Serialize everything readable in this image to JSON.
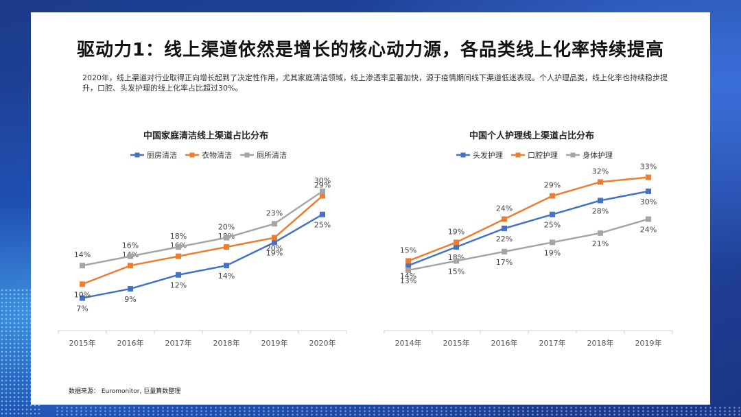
{
  "page": {
    "title": "驱动力1：线上渠道依然是增长的核心动力源，各品类线上化率持续提高",
    "description": "2020年，线上渠道对行业取得正向增长起到了决定性作用，尤其家庭清洁领域，线上渗透率显著加快，源于疫情期间线下渠道低迷表现。个人护理品类，线上化率也持续稳步提升，口腔、头发护理的线上化率占比超过30%。",
    "source": "数据来源： Euromonitor, 巨量算数整理"
  },
  "chart_data": [
    {
      "type": "line",
      "title": "中国家庭清洁线上渠道占比分布",
      "categories": [
        "2015年",
        "2016年",
        "2017年",
        "2018年",
        "2019年",
        "2020年"
      ],
      "ylim": [
        0,
        35
      ],
      "series": [
        {
          "name": "厨房清洁",
          "color": "#4472C4",
          "values": [
            7,
            9,
            12,
            14,
            19,
            25
          ],
          "labels": [
            "7%",
            "9%",
            "12%",
            "14%",
            "19%",
            "25%"
          ],
          "label_pos": "below"
        },
        {
          "name": "衣物清洁",
          "color": "#ED7D31",
          "values": [
            10,
            14,
            16,
            18,
            20,
            29
          ],
          "labels": [
            "10%",
            "14%",
            "16%",
            "18%",
            "20%",
            "29%"
          ],
          "label_pos": "mixed"
        },
        {
          "name": "厕所清洁",
          "color": "#A5A5A5",
          "values": [
            14,
            16,
            18,
            20,
            23,
            30
          ],
          "labels": [
            "14%",
            "16%",
            "18%",
            "20%",
            "23%",
            "30%"
          ],
          "label_pos": "above"
        }
      ]
    },
    {
      "type": "line",
      "title": "中国个人护理线上渠道占比分布",
      "categories": [
        "2014年",
        "2015年",
        "2016年",
        "2017年",
        "2018年",
        "2019年"
      ],
      "ylim": [
        0,
        35
      ],
      "series": [
        {
          "name": "头发护理",
          "color": "#4472C4",
          "values": [
            14,
            18,
            22,
            25,
            28,
            30
          ],
          "labels": [
            "14%",
            "18%",
            "22%",
            "25%",
            "28%",
            "30%"
          ],
          "label_pos": "below"
        },
        {
          "name": "口腔护理",
          "color": "#ED7D31",
          "values": [
            15,
            19,
            24,
            29,
            32,
            33
          ],
          "labels": [
            "15%",
            "19%",
            "24%",
            "29%",
            "32%",
            "33%"
          ],
          "label_pos": "above"
        },
        {
          "name": "身体护理",
          "color": "#A5A5A5",
          "values": [
            13,
            15,
            17,
            19,
            21,
            24
          ],
          "labels": [
            "13%",
            "15%",
            "17%",
            "19%",
            "21%",
            "24%"
          ],
          "label_pos": "below"
        }
      ]
    }
  ]
}
